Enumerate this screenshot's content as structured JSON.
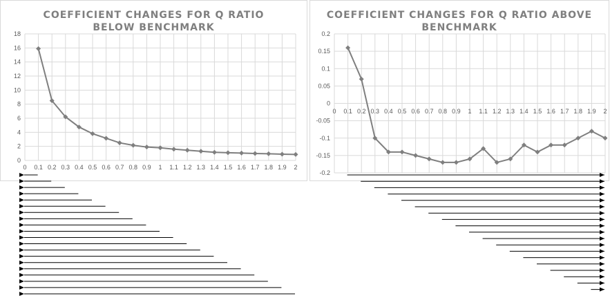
{
  "chart_data": [
    {
      "type": "line",
      "title": "COEFFICIENT CHANGES FOR Q RATIO\nBELOW BENCHMARK",
      "x": [
        0.1,
        0.2,
        0.3,
        0.4,
        0.5,
        0.6,
        0.7,
        0.8,
        0.9,
        1,
        1.1,
        1.2,
        1.3,
        1.4,
        1.5,
        1.6,
        1.7,
        1.8,
        1.9,
        2
      ],
      "values": [
        15.9,
        8.5,
        6.2,
        4.75,
        3.8,
        3.15,
        2.5,
        2.15,
        1.9,
        1.8,
        1.6,
        1.45,
        1.3,
        1.15,
        1.1,
        1.05,
        0.98,
        0.95,
        0.88,
        0.85
      ],
      "x_ticks": [
        "0",
        "0.1",
        "0.2",
        "0.3",
        "0.4",
        "0.5",
        "0.6",
        "0.7",
        "0.8",
        "0.9",
        "1",
        "1.1",
        "1.2",
        "1.3",
        "1.4",
        "1.5",
        "1.6",
        "1.7",
        "1.8",
        "1.9",
        "2"
      ],
      "y_ticks": [
        "0",
        "2",
        "4",
        "6",
        "8",
        "10",
        "12",
        "14",
        "16",
        "18"
      ],
      "xlim": [
        0,
        2
      ],
      "ylim": [
        0,
        18
      ],
      "grid": true,
      "line_color": "#7f7f7f",
      "marker": "diamond"
    },
    {
      "type": "line",
      "title": "COEFFICIENT CHANGES FOR Q RATIO ABOVE\nBENCHMARK",
      "x": [
        0.1,
        0.2,
        0.3,
        0.4,
        0.5,
        0.6,
        0.7,
        0.8,
        0.9,
        1,
        1.1,
        1.2,
        1.3,
        1.4,
        1.5,
        1.6,
        1.7,
        1.8,
        1.9,
        2
      ],
      "values": [
        0.16,
        0.07,
        -0.1,
        -0.14,
        -0.14,
        -0.15,
        -0.16,
        -0.17,
        -0.17,
        -0.16,
        -0.13,
        -0.17,
        -0.16,
        -0.12,
        -0.14,
        -0.12,
        -0.12,
        -0.1,
        -0.08,
        -0.1
      ],
      "x_ticks": [
        "0",
        "0.1",
        "0.2",
        "0.3",
        "0.4",
        "0.5",
        "0.6",
        "0.7",
        "0.8",
        "0.9",
        "1",
        "1.1",
        "1.2",
        "1.3",
        "1.4",
        "1.5",
        "1.6",
        "1.7",
        "1.8",
        "1.9",
        "2"
      ],
      "y_ticks": [
        "-0.2",
        "-0.15",
        "-0.1",
        "-0.05",
        "0",
        "0.05",
        "0.1",
        "0.15",
        "0.2"
      ],
      "xlim": [
        0,
        2
      ],
      "ylim": [
        -0.2,
        0.2
      ],
      "grid": true,
      "line_color": "#7f7f7f",
      "marker": "diamond"
    }
  ],
  "arrows": {
    "left_count": 20,
    "right_count": 19,
    "left_direction": "left",
    "right_direction": "right",
    "color": "#000000"
  }
}
